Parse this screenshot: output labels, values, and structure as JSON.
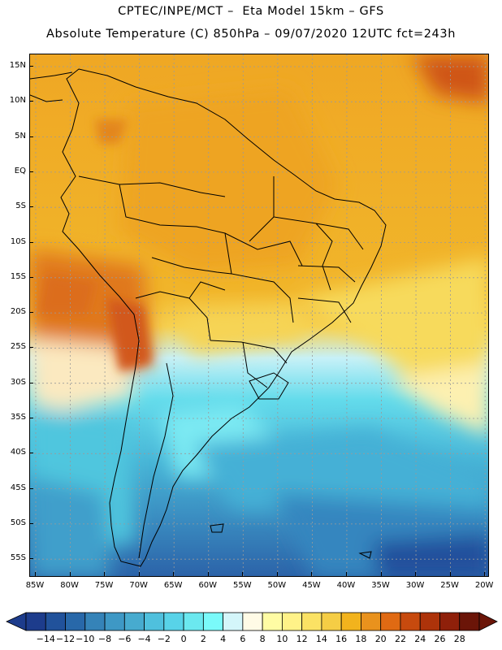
{
  "header": {
    "line1": "CPTEC/INPE/MCT –  Eta Model 15km – GFS",
    "line2": "Absolute Temperature (C) 850hPa – 09/07/2020 12UTC fct=243h"
  },
  "map": {
    "lat_labels": [
      "15N",
      "10N",
      "5N",
      "EQ",
      "5S",
      "10S",
      "15S",
      "20S",
      "25S",
      "30S",
      "35S",
      "40S",
      "45S",
      "50S",
      "55S"
    ],
    "lon_labels": [
      "85W",
      "80W",
      "75W",
      "70W",
      "65W",
      "60W",
      "55W",
      "50W",
      "45W",
      "40W",
      "35W",
      "30W",
      "25W",
      "20W"
    ],
    "field": "temperature_850hPa",
    "units": "C"
  },
  "colorbar": {
    "tick_labels": [
      "-14",
      "-12",
      "-10",
      "-8",
      "-6",
      "-4",
      "-2",
      "0",
      "2",
      "4",
      "6",
      "8",
      "10",
      "12",
      "14",
      "16",
      "18",
      "20",
      "22",
      "24",
      "26",
      "28"
    ],
    "colors": [
      "#1d3c8c",
      "#21529b",
      "#2868a9",
      "#3583b8",
      "#3e98c5",
      "#47abcf",
      "#4fc0dd",
      "#58d3e8",
      "#6be8ef",
      "#7afafa",
      "#d4f6fa",
      "#fffbe6",
      "#fffca4",
      "#fff288",
      "#fbe264",
      "#f5cd45",
      "#f2b31d",
      "#e9921d",
      "#e06a13",
      "#c74a0e",
      "#ad330a",
      "#8f200a",
      "#6b1508"
    ],
    "extend": "both"
  }
}
